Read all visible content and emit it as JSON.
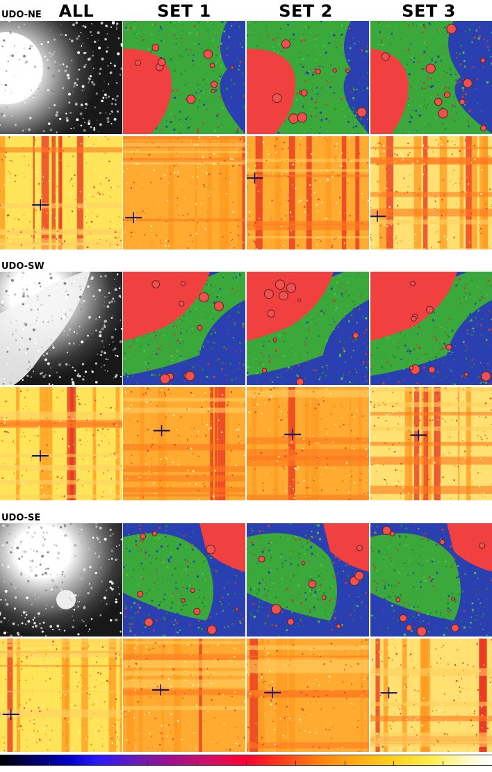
{
  "columns": [
    "ALL",
    "SET 1",
    "SET 2",
    "SET 3"
  ],
  "rows": [
    {
      "label": "UDO-NE",
      "image": "north-east",
      "showLabel": true
    },
    {
      "label": "UDO-SW",
      "image": "south-west",
      "showLabel": true
    },
    {
      "label": "UDO-SE",
      "image": "south-east",
      "showLabel": true
    }
  ],
  "colorbar": {
    "colormap": "black-blue-purple-red-orange-yellow-white"
  },
  "colors": {
    "bg_red": "#f04040",
    "green": "#3aa83a",
    "blue": "#2a3fb0",
    "yellow": "#ffe060",
    "orange": "#ffaa30"
  }
}
